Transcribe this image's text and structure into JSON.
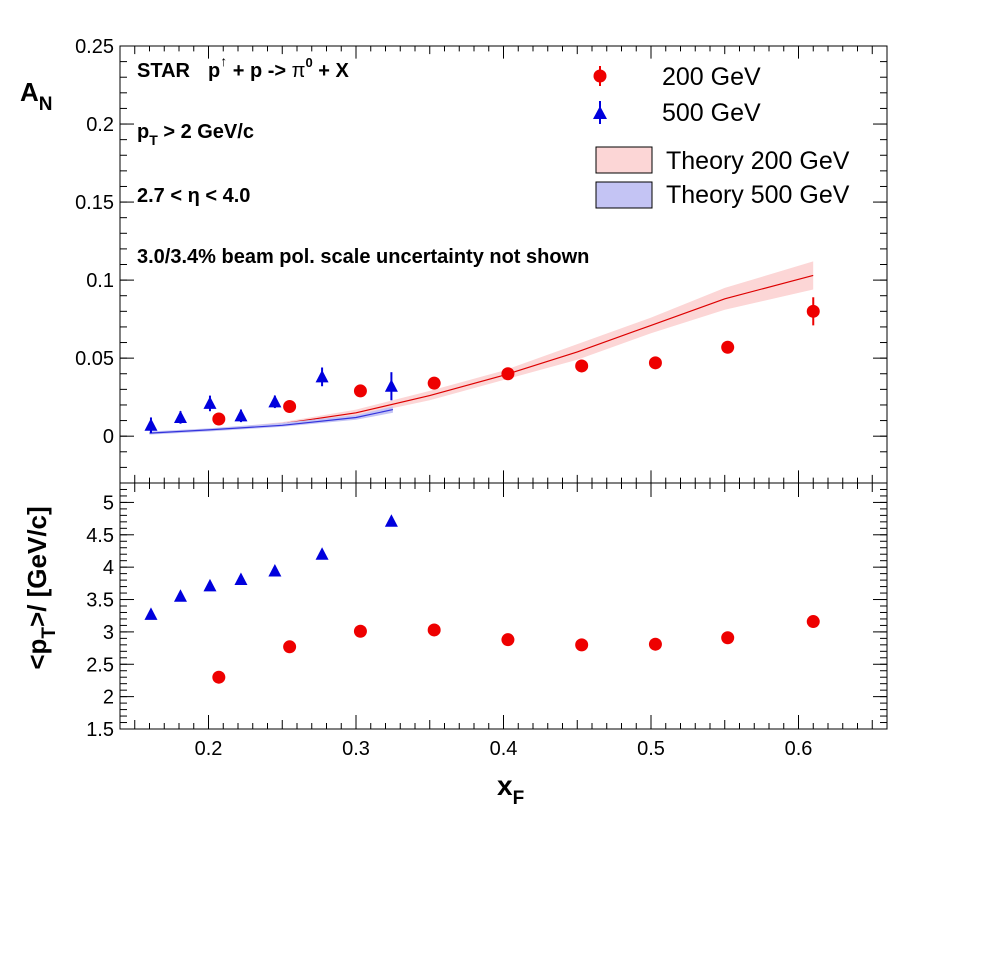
{
  "chart_data": [
    {
      "type": "scatter",
      "panel": "asymmetry",
      "ylabel_main": "A",
      "ylabel_sub": "N",
      "xlim": [
        0.14,
        0.66
      ],
      "ylim": [
        -0.03,
        0.25
      ],
      "yticks": [
        0,
        0.05,
        0.1,
        0.15,
        0.2,
        0.25
      ],
      "ytick_labels": [
        "0",
        "0.05",
        "0.1",
        "0.15",
        "0.2",
        "0.25"
      ],
      "annotations": {
        "line1_a": "STAR",
        "line1_b": "p",
        "line1_up": "↑",
        "line1_c": " + p -> ",
        "line1_pi": "π",
        "line1_zero": "0",
        "line1_d": " + X",
        "line2_a": "p",
        "line2_sub": "T",
        "line2_b": " > 2 GeV/c",
        "line3": "2.7 < η < 4.0",
        "line4": "3.0/3.4% beam pol. scale uncertainty not shown"
      },
      "legend": {
        "placement": "top-right",
        "entries": [
          "200 GeV",
          "500 GeV",
          "Theory 200 GeV",
          "Theory 500 GeV"
        ]
      },
      "series": [
        {
          "name": "200 GeV",
          "marker": "circle",
          "color": "#ee0000",
          "x": [
            0.207,
            0.255,
            0.303,
            0.353,
            0.403,
            0.453,
            0.503,
            0.552,
            0.61
          ],
          "y": [
            0.011,
            0.019,
            0.029,
            0.034,
            0.04,
            0.045,
            0.047,
            0.057,
            0.08
          ],
          "err": [
            0.002,
            0.002,
            0.002,
            0.002,
            0.002,
            0.003,
            0.003,
            0.004,
            0.009
          ]
        },
        {
          "name": "500 GeV",
          "marker": "triangle",
          "color": "#0000dd",
          "x": [
            0.161,
            0.181,
            0.201,
            0.222,
            0.245,
            0.277,
            0.324
          ],
          "y": [
            0.007,
            0.012,
            0.021,
            0.013,
            0.022,
            0.038,
            0.032
          ],
          "err": [
            0.005,
            0.004,
            0.005,
            0.004,
            0.004,
            0.006,
            0.009
          ]
        }
      ],
      "theory_bands": [
        {
          "name": "Theory 200 GeV",
          "line_color": "#dd0000",
          "fill_color": "#fcd6d6",
          "x": [
            0.16,
            0.2,
            0.25,
            0.3,
            0.35,
            0.4,
            0.45,
            0.5,
            0.55,
            0.61
          ],
          "y": [
            0.002,
            0.004,
            0.008,
            0.015,
            0.026,
            0.039,
            0.054,
            0.071,
            0.088,
            0.103
          ],
          "lo": [
            0.0015,
            0.0035,
            0.007,
            0.013,
            0.023,
            0.036,
            0.049,
            0.066,
            0.081,
            0.094
          ],
          "hi": [
            0.0025,
            0.0045,
            0.009,
            0.017,
            0.029,
            0.042,
            0.059,
            0.076,
            0.095,
            0.112
          ]
        },
        {
          "name": "Theory 500 GeV",
          "line_color": "#3333dd",
          "fill_color": "#c4c4f4",
          "x": [
            0.16,
            0.2,
            0.25,
            0.3,
            0.325
          ],
          "y": [
            0.002,
            0.004,
            0.007,
            0.012,
            0.017
          ],
          "lo": [
            0.001,
            0.003,
            0.006,
            0.0105,
            0.015
          ],
          "hi": [
            0.003,
            0.005,
            0.0085,
            0.0135,
            0.019
          ]
        }
      ]
    },
    {
      "type": "scatter",
      "panel": "mean-pt",
      "ylabel": "<p",
      "ylabel_sub": "T",
      "ylabel_rest": ">/ [GeV/c]",
      "xlabel_main": "x",
      "xlabel_sub": "F",
      "xlim": [
        0.14,
        0.66
      ],
      "ylim": [
        1.5,
        5.3
      ],
      "yticks": [
        1.5,
        2,
        2.5,
        3,
        3.5,
        4,
        4.5,
        5
      ],
      "ytick_labels": [
        "1.5",
        "2",
        "2.5",
        "3",
        "3.5",
        "4",
        "4.5",
        "5"
      ],
      "xticks": [
        0.2,
        0.3,
        0.4,
        0.5,
        0.6
      ],
      "xtick_labels": [
        "0.2",
        "0.3",
        "0.4",
        "0.5",
        "0.6"
      ],
      "series": [
        {
          "name": "200 GeV",
          "marker": "circle",
          "color": "#ee0000",
          "x": [
            0.207,
            0.255,
            0.303,
            0.353,
            0.403,
            0.453,
            0.503,
            0.552,
            0.61
          ],
          "y": [
            2.3,
            2.77,
            3.01,
            3.03,
            2.88,
            2.8,
            2.81,
            2.91,
            3.16
          ]
        },
        {
          "name": "500 GeV",
          "marker": "triangle",
          "color": "#0000dd",
          "x": [
            0.161,
            0.181,
            0.201,
            0.222,
            0.245,
            0.277,
            0.324
          ],
          "y": [
            3.27,
            3.55,
            3.71,
            3.81,
            3.94,
            4.2,
            4.71
          ]
        }
      ]
    }
  ]
}
